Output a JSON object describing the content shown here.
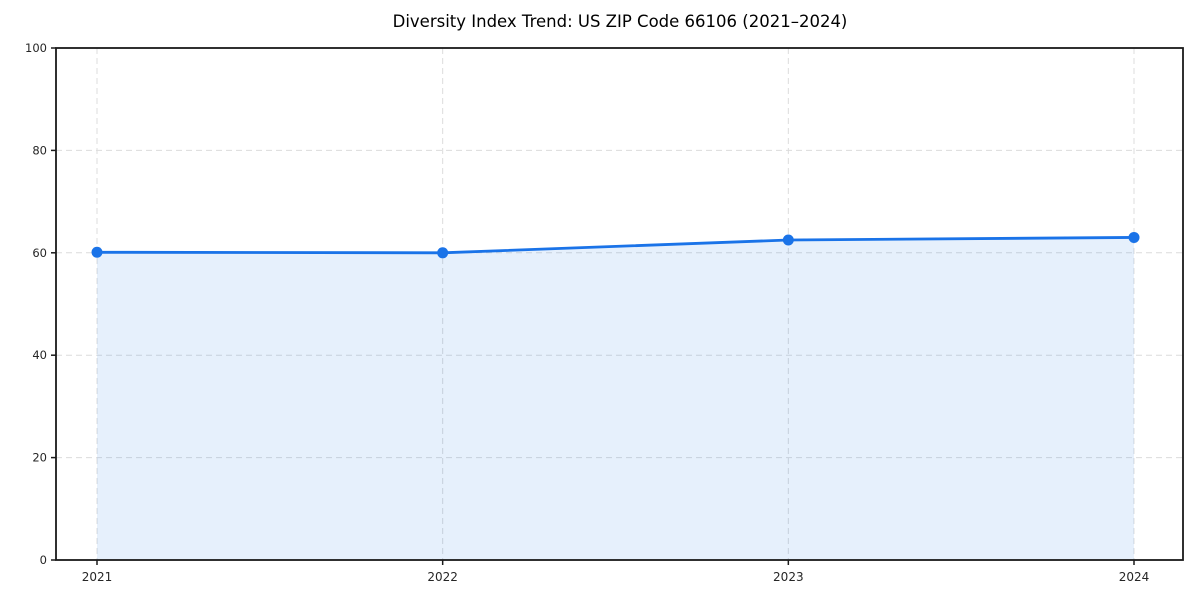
{
  "chart_data": {
    "type": "area",
    "title": "Diversity Index Trend: US ZIP Code 66106 (2021–2024)",
    "categories": [
      "2021",
      "2022",
      "2023",
      "2024"
    ],
    "series": [
      {
        "name": "Diversity Index",
        "values": [
          60.1,
          60.0,
          62.5,
          63.0
        ]
      }
    ],
    "xlabel": "",
    "ylabel": "",
    "ylim": [
      0,
      100
    ],
    "yticks": [
      0,
      20,
      40,
      60,
      80,
      100
    ],
    "grid": true,
    "grid_style": "dashed",
    "legend_position": "none",
    "marker": "circle",
    "colors": {
      "line": "#1a73e8",
      "marker": "#1a73e8",
      "fill": "#1a73e8",
      "fill_opacity": 0.11,
      "grid": "#dcdcdc",
      "axis": "#1a1a1a",
      "tick_text": "#262626",
      "title_text": "#000000",
      "background": "#ffffff"
    }
  }
}
